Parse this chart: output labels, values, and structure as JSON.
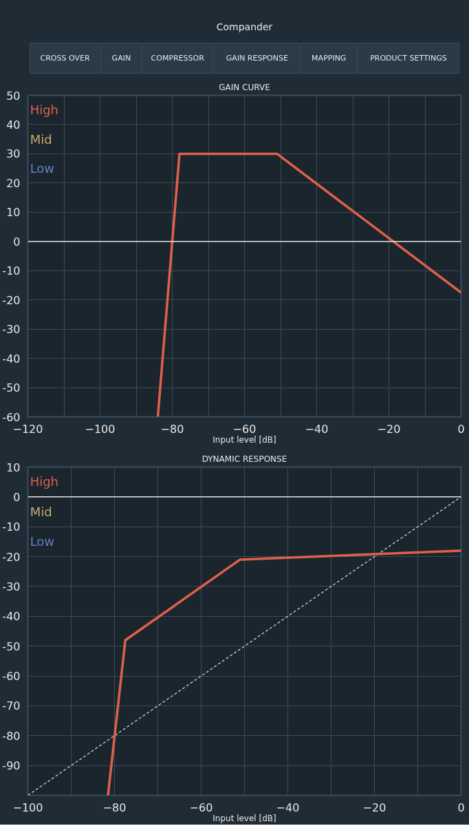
{
  "chart_data": [
    {
      "type": "other",
      "title": "Compander",
      "annotations": [
        "CROSS OVER",
        "GAIN",
        "COMPRESSOR",
        "GAIN RESPONSE",
        "MAPPING",
        "PRODUCT SETTINGS"
      ]
    },
    {
      "type": "line",
      "title": "GAIN CURVE",
      "xlabel": "Input level [dB]",
      "xlim": [
        -120,
        0
      ],
      "ylim": [
        -60,
        50
      ],
      "xticks": [
        -120,
        {
          "value": -110,
          "label": null
        },
        -100,
        {
          "value": -90,
          "label": null
        },
        -80,
        {
          "value": -70,
          "label": null
        },
        -60,
        {
          "value": -50,
          "label": null
        },
        -40,
        {
          "value": -30,
          "label": null
        },
        -20,
        {
          "value": -10,
          "label": null
        },
        0
      ],
      "yticks": [
        -60,
        -50,
        -40,
        -30,
        -20,
        -10,
        0,
        10,
        20,
        30,
        40,
        50
      ],
      "grid": true,
      "legend": "top left",
      "line_style": "solid",
      "ref_lines": [
        {
          "axis": "y",
          "value": 0,
          "color": "#e6e6e6"
        }
      ],
      "series": [
        {
          "name": "High",
          "color": "#e0604a",
          "x": [
            -84,
            -78,
            -51,
            0
          ],
          "values": [
            -60,
            30,
            30,
            -17.5
          ]
        },
        {
          "name": "Mid",
          "color": "#c8ac6a"
        },
        {
          "name": "Low",
          "color": "#5f80c0"
        }
      ]
    },
    {
      "type": "line",
      "title": "DYNAMIC RESPONSE",
      "xlabel": "Input level [dB]",
      "xlim": [
        -100,
        0
      ],
      "ylim": [
        -100,
        10
      ],
      "xticks": [
        -100,
        {
          "value": -90,
          "label": null
        },
        -80,
        {
          "value": -70,
          "label": null
        },
        -60,
        {
          "value": -50,
          "label": null
        },
        -40,
        {
          "value": -30,
          "label": null
        },
        -20,
        {
          "value": -10,
          "label": null
        },
        0
      ],
      "yticks": [
        {
          "value": -100,
          "label": null
        },
        -90,
        -80,
        -70,
        -60,
        -50,
        -40,
        -30,
        -20,
        -10,
        0,
        10
      ],
      "grid": true,
      "legend": "top left",
      "line_style": "solid",
      "ref_lines": [
        {
          "axis": "y",
          "value": 0,
          "color": "#e6e6e6"
        }
      ],
      "series": [
        {
          "color": "#e0e0e0",
          "line_style": "dashed",
          "x": [
            -100,
            0
          ],
          "values": [
            -100,
            0
          ]
        },
        {
          "name": "High",
          "color": "#e0604a",
          "x": [
            -81.5,
            -77.5,
            -51,
            0
          ],
          "values": [
            -100,
            -48,
            -21,
            -18
          ]
        },
        {
          "name": "Mid",
          "color": "#c8ac6a"
        },
        {
          "name": "Low",
          "color": "#5f80c0"
        }
      ]
    }
  ]
}
